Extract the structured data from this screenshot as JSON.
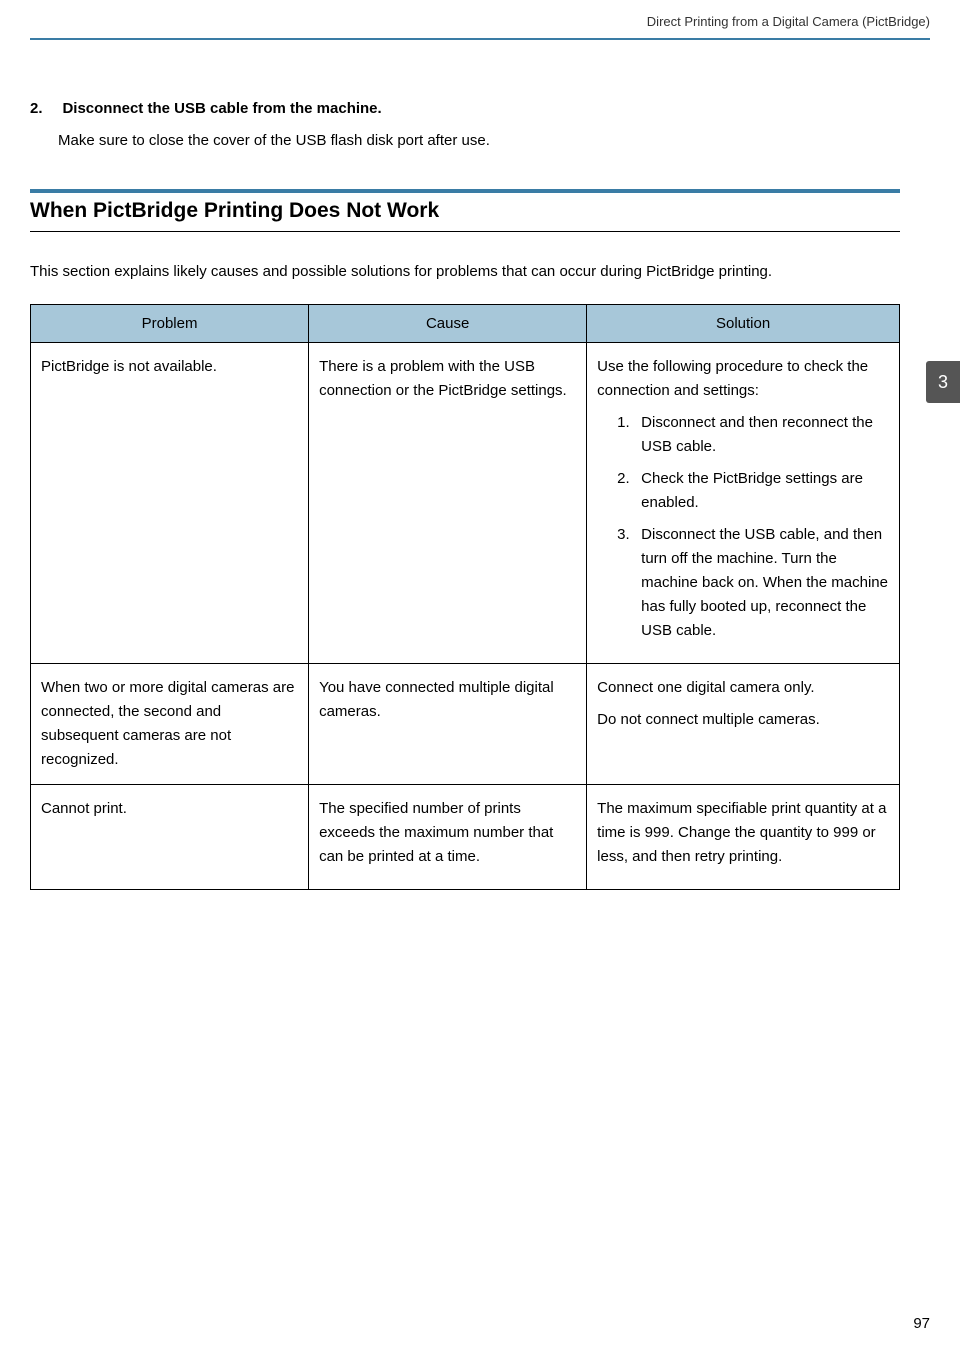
{
  "header": {
    "running_title": "Direct Printing from a Digital Camera (PictBridge)"
  },
  "step": {
    "number": "2.",
    "title": "Disconnect the USB cable from the machine.",
    "body": "Make sure to close the cover of the USB flash disk port after use."
  },
  "section": {
    "title": "When PictBridge Printing Does Not Work",
    "intro": "This section explains likely causes and possible solutions for problems that can occur during PictBridge printing."
  },
  "table": {
    "headers": {
      "problem": "Problem",
      "cause": "Cause",
      "solution": "Solution"
    },
    "column_widths": [
      "32%",
      "32%",
      "36%"
    ],
    "header_bg": "#a7c7d9",
    "border_color": "#000000",
    "rows": [
      {
        "problem": "PictBridge is not available.",
        "cause": "There is a problem with the USB connection or the PictBridge settings.",
        "solution_intro": "Use the following procedure to check the connection and settings:",
        "solution_items": [
          "Disconnect and then reconnect the USB cable.",
          "Check the PictBridge settings are enabled.",
          "Disconnect the USB cable, and then turn off the machine. Turn the machine back on. When the machine has fully booted up, reconnect the USB cable."
        ]
      },
      {
        "problem": "When two or more digital cameras are connected, the second and subsequent cameras are not recognized.",
        "cause": "You have connected multiple digital cameras.",
        "solution_p1": "Connect one digital camera only.",
        "solution_p2": "Do not connect multiple cameras."
      },
      {
        "problem": "Cannot print.",
        "cause": "The specified number of prints exceeds the maximum number that can be printed at a time.",
        "solution_p1": "The maximum specifiable print quantity at a time is 999. Change the quantity to 999 or less, and then retry printing."
      }
    ]
  },
  "side_tab": {
    "label": "3",
    "bg": "#555555",
    "color": "#ffffff"
  },
  "page_number": "97",
  "colors": {
    "accent": "#3a7ca5",
    "text": "#000000",
    "bg": "#ffffff"
  }
}
